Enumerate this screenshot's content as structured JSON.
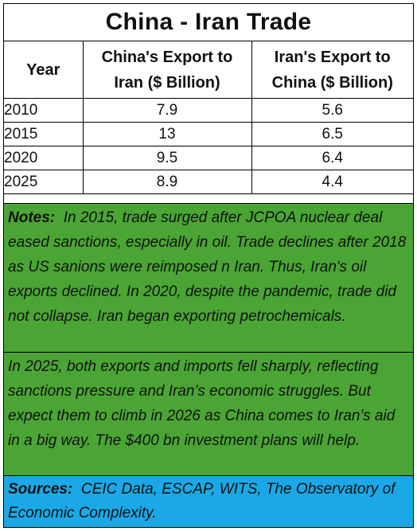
{
  "title": "China - Iran Trade",
  "table": {
    "headers": {
      "year": "Year",
      "china_export_line1": "China's Export to",
      "china_export_line2": "Iran ($ Billion)",
      "iran_export_line1": "Iran's Export to",
      "iran_export_line2": "China ($ Billion)"
    },
    "rows": [
      {
        "year": "2010",
        "china_export": "7.9",
        "iran_export": "5.6"
      },
      {
        "year": "2015",
        "china_export": "13",
        "iran_export": "6.5"
      },
      {
        "year": "2020",
        "china_export": "9.5",
        "iran_export": "6.4"
      },
      {
        "year": "2025",
        "china_export": "8.9",
        "iran_export": "4.4"
      }
    ]
  },
  "notes": {
    "label": "Notes:",
    "paragraph1": "In 2015, trade surged after JCPOA nuclear deal eased sanctions, especially in oil. Trade declines after 2018 as US sanions were reimposed n Iran. Thus, Iran's oil exports declined. In 2020, despite the pandemic,  trade did not collapse.  Iran began exporting petrochemicals.",
    "paragraph2": "In 2025, both exports and imports fell sharply, reflecting sanctions pressure and Iran’s economic struggles.  But expect them to climb in 2026 as China comes to Iran's aid in a big way. The $400 bn investment plans will help."
  },
  "sources": {
    "label": "Sources:",
    "text": "CEIC Data, ESCAP, WITS, The Observatory of Economic Complexity."
  },
  "colors": {
    "notes_background": "#4aa534",
    "sources_background": "#1aa9e6"
  }
}
